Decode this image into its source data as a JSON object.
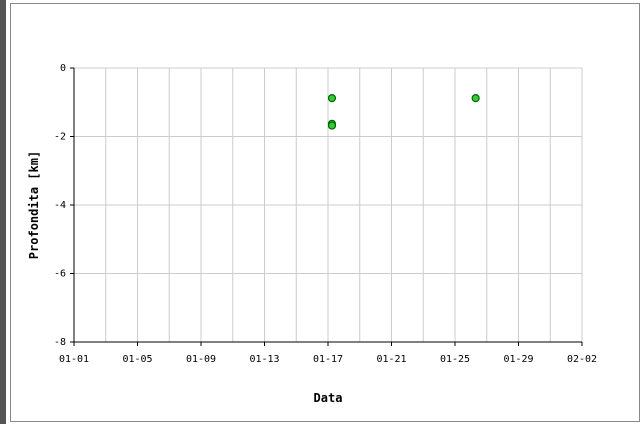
{
  "chart_data": {
    "type": "scatter",
    "x_label": "Data",
    "y_label": "Profondita [km]",
    "series": [
      {
        "color": "#33cc33",
        "x": [
          16.25,
          16.25,
          16.25,
          25.3
        ],
        "values": [
          -0.88,
          -1.63,
          -1.68,
          -0.88
        ]
      }
    ],
    "xlim": [
      0,
      32
    ],
    "xticks": [
      {
        "value": 0,
        "label": "01-01"
      },
      {
        "value": 4,
        "label": "01-05"
      },
      {
        "value": 8,
        "label": "01-09"
      },
      {
        "value": 12,
        "label": "01-13"
      },
      {
        "value": 16,
        "label": "01-17"
      },
      {
        "value": 20,
        "label": "01-21"
      },
      {
        "value": 24,
        "label": "01-25"
      },
      {
        "value": 28,
        "label": "01-29"
      },
      {
        "value": 32,
        "label": "02-02"
      }
    ],
    "minor_xticks": [
      2,
      6,
      10,
      14,
      18,
      22,
      26,
      30
    ],
    "ylim": [
      -8,
      0
    ],
    "yticks": [
      -8,
      -6,
      -4,
      -2,
      0
    ],
    "grid": true
  }
}
